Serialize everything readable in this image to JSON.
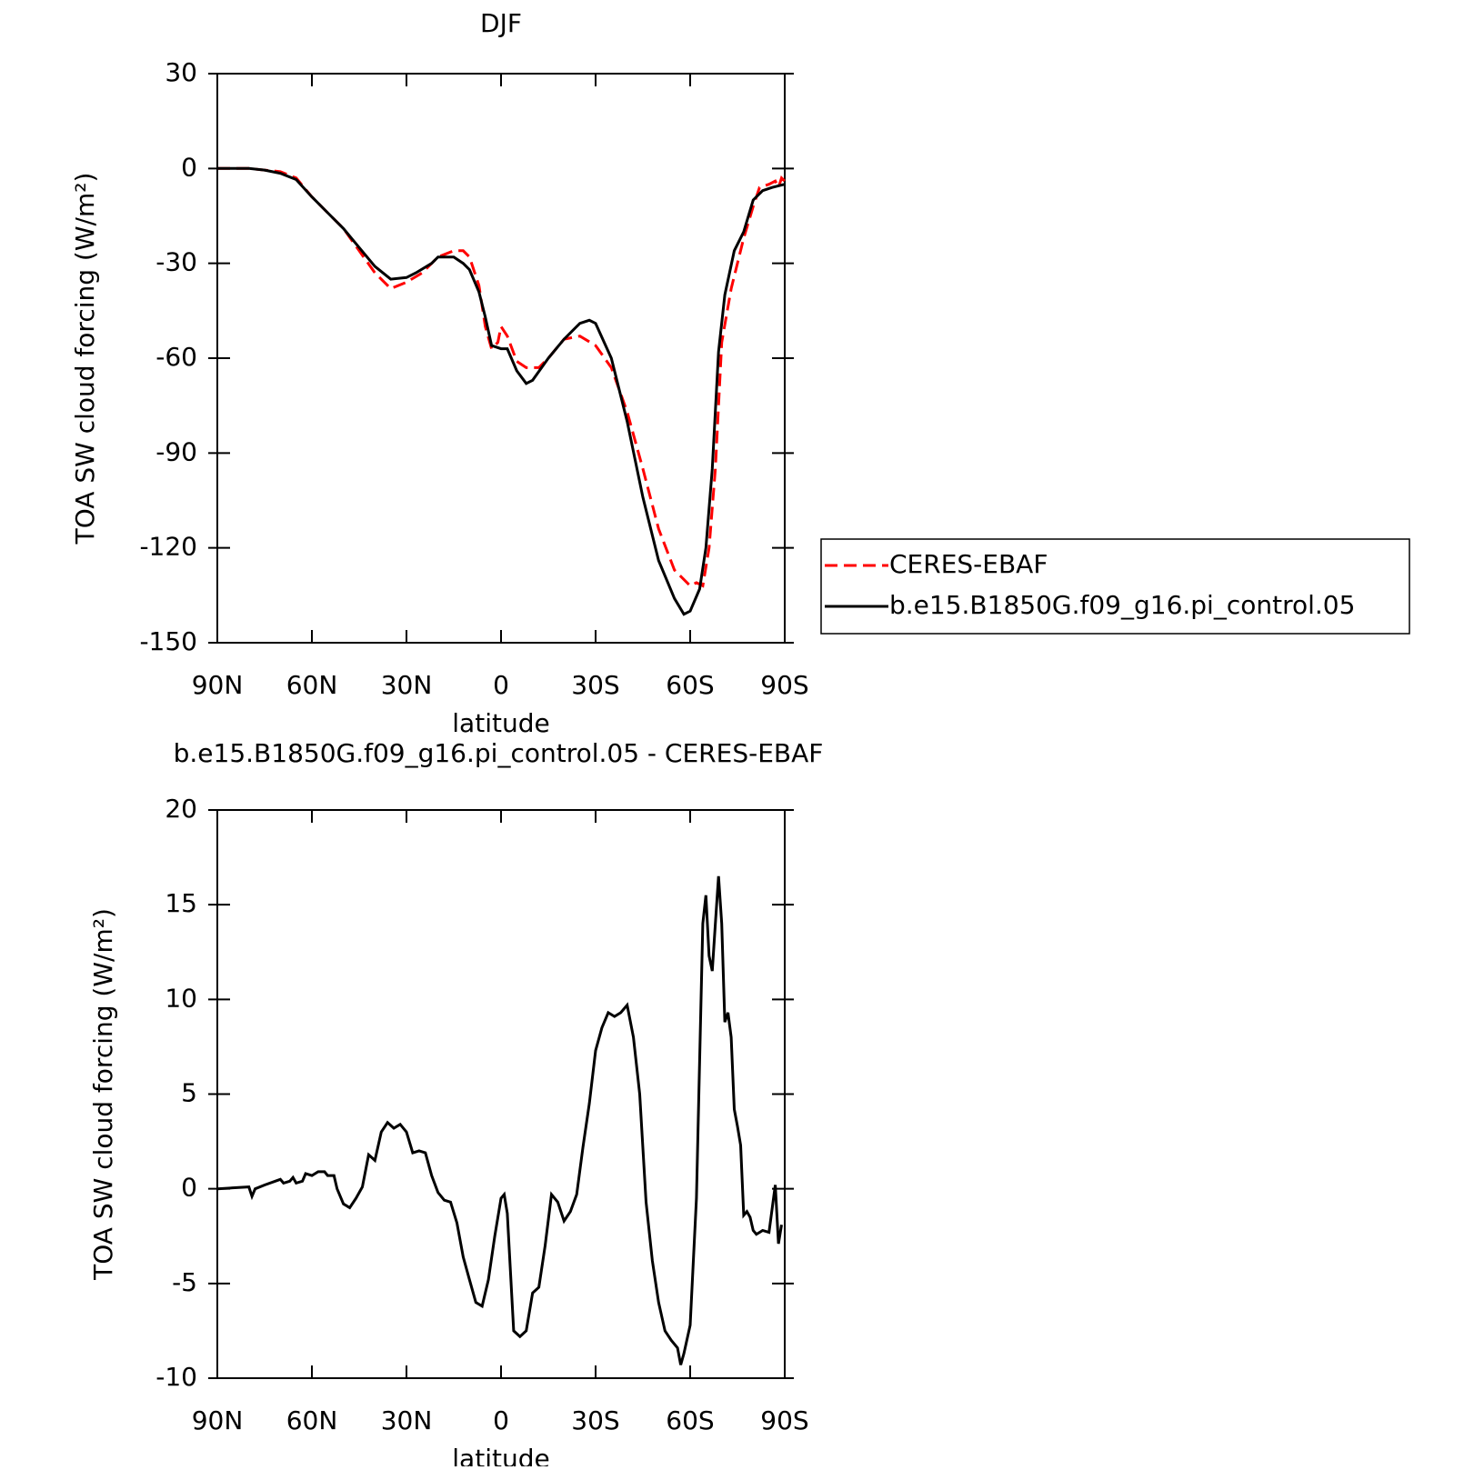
{
  "chart_data": [
    {
      "type": "line",
      "title": "DJF",
      "xlabel": "latitude",
      "ylabel": "TOA SW cloud forcing (W/m²)",
      "xlim": [
        90,
        -90
      ],
      "ylim": [
        -150,
        30
      ],
      "xticks": [
        {
          "value": 90,
          "label": "90N"
        },
        {
          "value": 60,
          "label": "60N"
        },
        {
          "value": 30,
          "label": "30N"
        },
        0,
        {
          "value": -30,
          "label": "30S"
        },
        {
          "value": -60,
          "label": "60S"
        },
        {
          "value": -90,
          "label": "90S"
        }
      ],
      "yticks": [
        -150,
        -120,
        -90,
        -60,
        -30,
        0,
        30
      ],
      "legend": "right",
      "series": [
        {
          "name": "CERES-EBAF",
          "color": "#ff0000",
          "linestyle": "dashed",
          "x": [
            90,
            85,
            80,
            75,
            70,
            65,
            60,
            55,
            50,
            45,
            40,
            35,
            30,
            25,
            20,
            15,
            12,
            10,
            7,
            5,
            3,
            1,
            0,
            -2,
            -5,
            -8,
            -12,
            -15,
            -20,
            -25,
            -30,
            -35,
            -40,
            -45,
            -50,
            -55,
            -60,
            -62,
            -64,
            -66,
            -68,
            -70,
            -73,
            -77,
            -80,
            -82,
            -85,
            -87,
            -88,
            -89,
            -90
          ],
          "values": [
            0,
            0,
            0,
            -0.5,
            -1,
            -3,
            -9,
            -14,
            -19,
            -26,
            -33,
            -38,
            -36,
            -33,
            -28,
            -26,
            -26,
            -28,
            -37,
            -50,
            -57,
            -55,
            -50,
            -53,
            -61,
            -63,
            -63,
            -60,
            -54,
            -53,
            -56,
            -63,
            -77,
            -95,
            -114,
            -127,
            -132,
            -131,
            -132,
            -120,
            -95,
            -55,
            -38,
            -22,
            -12,
            -6,
            -5,
            -4,
            -6,
            -3,
            -4
          ]
        },
        {
          "name": "b.e15.B1850G.f09_g16.pi_control.05",
          "color": "#000000",
          "linestyle": "solid",
          "x": [
            90,
            80,
            75,
            70,
            65,
            60,
            55,
            50,
            45,
            40,
            35,
            30,
            27,
            22,
            20,
            15,
            12,
            10,
            7,
            5,
            3,
            0,
            -2,
            -5,
            -8,
            -10,
            -15,
            -20,
            -25,
            -28,
            -30,
            -35,
            -40,
            -45,
            -50,
            -55,
            -58,
            -60,
            -63,
            -65,
            -67,
            -69,
            -71,
            -74,
            -77,
            -80,
            -83,
            -86,
            -90
          ],
          "values": [
            0,
            0,
            -0.5,
            -1.5,
            -3.5,
            -9,
            -14,
            -19,
            -25,
            -31,
            -35,
            -34.5,
            -33,
            -30,
            -28,
            -28,
            -30,
            -32,
            -39,
            -47,
            -56,
            -57,
            -57,
            -64,
            -68,
            -67,
            -60,
            -54,
            -49,
            -48,
            -49,
            -60,
            -80,
            -104,
            -124,
            -136,
            -141,
            -140,
            -133,
            -120,
            -95,
            -58,
            -40,
            -26,
            -20,
            -10,
            -7,
            -6,
            -5
          ]
        }
      ]
    },
    {
      "type": "line",
      "title": "b.e15.B1850G.f09_g16.pi_control.05 - CERES-EBAF",
      "xlabel": "latitude",
      "ylabel": "TOA SW cloud forcing (W/m²)",
      "xlim": [
        90,
        -90
      ],
      "ylim": [
        -10,
        20
      ],
      "xticks": [
        {
          "value": 90,
          "label": "90N"
        },
        {
          "value": 60,
          "label": "60N"
        },
        {
          "value": 30,
          "label": "30N"
        },
        0,
        {
          "value": -30,
          "label": "30S"
        },
        {
          "value": -60,
          "label": "60S"
        },
        {
          "value": -90,
          "label": "90S"
        }
      ],
      "yticks": [
        -10,
        -5,
        0,
        5,
        10,
        15,
        20
      ],
      "color": "#000000",
      "x": [
        90,
        80,
        79,
        78,
        75,
        70,
        69,
        67,
        66,
        65,
        63,
        62,
        60,
        58,
        56,
        55,
        53,
        52,
        50,
        48,
        46,
        44,
        42,
        40,
        38,
        36,
        34,
        32,
        30,
        28,
        26,
        24,
        22,
        20,
        18,
        16,
        14,
        12,
        10,
        8,
        6,
        4,
        2,
        0,
        -1,
        -2,
        -4,
        -6,
        -8,
        -10,
        -12,
        -14,
        -16,
        -18,
        -20,
        -22,
        -24,
        -26,
        -28,
        -30,
        -32,
        -34,
        -36,
        -38,
        -40,
        -42,
        -44,
        -46,
        -48,
        -50,
        -52,
        -54,
        -56,
        -57,
        -58,
        -60,
        -62,
        -64,
        -65,
        -66,
        -67,
        -68,
        -69,
        -70,
        -71,
        -72,
        -73,
        -74,
        -75,
        -76,
        -77,
        -78,
        -79,
        -80,
        -81,
        -82,
        -83,
        -85,
        -87,
        -88,
        -89
      ],
      "values": [
        0,
        0.1,
        -0.4,
        0,
        0.2,
        0.5,
        0.3,
        0.4,
        0.6,
        0.3,
        0.4,
        0.8,
        0.7,
        0.9,
        0.9,
        0.7,
        0.7,
        0,
        -0.8,
        -1,
        -0.5,
        0.1,
        1.8,
        1.5,
        3,
        3.5,
        3.2,
        3.4,
        3,
        1.9,
        2,
        1.9,
        0.7,
        -0.2,
        -0.6,
        -0.7,
        -1.8,
        -3.6,
        -4.8,
        -6,
        -6.2,
        -4.8,
        -2.5,
        -0.5,
        -0.3,
        -1.3,
        -7.5,
        -7.8,
        -7.5,
        -5.5,
        -5.2,
        -3,
        -0.3,
        -0.7,
        -1.7,
        -1.2,
        -0.3,
        2.2,
        4.5,
        7.3,
        8.5,
        9.3,
        9.1,
        9.3,
        9.7,
        8,
        5,
        -0.7,
        -3.8,
        -6,
        -7.5,
        -8,
        -8.4,
        -9.3,
        -8.7,
        -7.2,
        -0.5,
        14,
        15.5,
        12.3,
        11.5,
        14,
        16.5,
        14,
        8.8,
        9.3,
        8,
        4.2,
        3.3,
        2.3,
        -1.4,
        -1.2,
        -1.5,
        -2.2,
        -2.4,
        -2.3,
        -2.2,
        -2.3,
        0.2,
        -2.9,
        -1.9
      ]
    }
  ]
}
